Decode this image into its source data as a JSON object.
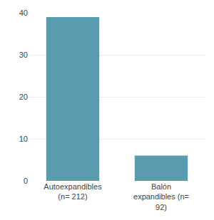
{
  "chart_data": {
    "type": "bar",
    "categories": [
      "Autoexpandibles\n(n= 212)",
      "Balón\nexpandibles (n=\n92)"
    ],
    "values": [
      39,
      6
    ],
    "color": "#5b9bb0",
    "ylim": [
      0,
      40
    ],
    "yticks": [
      0,
      10,
      20,
      30,
      40
    ],
    "grid": true
  }
}
